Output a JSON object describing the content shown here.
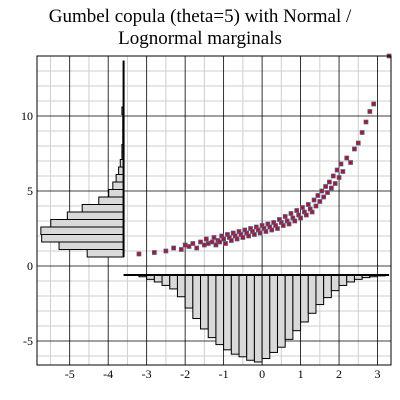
{
  "chart_data": {
    "type": "scatter",
    "title_lines": [
      "Gumbel copula (theta=5) with Normal /",
      "Lognormal marginals"
    ],
    "xlabel": "",
    "ylabel": "",
    "xlim": [
      -5.85,
      3.35
    ],
    "ylim": [
      -6.6,
      14.0
    ],
    "grid": true,
    "x_ticks": [
      -5,
      -4,
      -3,
      -2,
      -1,
      0,
      1,
      2,
      3
    ],
    "y_ticks": [
      -5,
      0,
      5,
      10
    ],
    "colors": {
      "point_fill": "#b01a1a",
      "point_edge": "#4a5fa8",
      "hist_fill": "#d9d9d9",
      "hist_edge": "#000000",
      "grid_major": "#000000",
      "grid_minor": "#cfcfcf"
    },
    "x_marginal_histogram": {
      "bin_edges": [
        -3.2,
        -3.0,
        -2.8,
        -2.6,
        -2.4,
        -2.2,
        -2.0,
        -1.8,
        -1.6,
        -1.4,
        -1.2,
        -1.0,
        -0.8,
        -0.6,
        -0.4,
        -0.2,
        0.0,
        0.2,
        0.4,
        0.6,
        0.8,
        1.0,
        1.2,
        1.4,
        1.6,
        1.8,
        2.0,
        2.2,
        2.4,
        2.6,
        2.8,
        3.0,
        3.2
      ],
      "relative_heights": [
        0.02,
        0.05,
        0.08,
        0.12,
        0.16,
        0.25,
        0.38,
        0.5,
        0.62,
        0.72,
        0.8,
        0.86,
        0.91,
        0.94,
        0.98,
        1.0,
        0.96,
        0.89,
        0.83,
        0.74,
        0.64,
        0.54,
        0.44,
        0.34,
        0.26,
        0.18,
        0.12,
        0.08,
        0.05,
        0.03,
        0.02,
        0.01
      ]
    },
    "y_marginal_histogram": {
      "bin_edges": [
        0.6,
        1.1,
        1.6,
        2.1,
        2.6,
        3.1,
        3.6,
        4.1,
        4.6,
        5.1,
        5.6,
        6.1,
        6.6,
        7.1,
        7.6,
        8.1,
        8.6,
        9.1,
        9.6,
        10.1,
        10.6
      ],
      "relative_heights": [
        0.44,
        0.78,
        0.99,
        1.0,
        0.88,
        0.68,
        0.5,
        0.3,
        0.18,
        0.13,
        0.09,
        0.06,
        0.04,
        0.02,
        0.02,
        0.01,
        0.01,
        0.01,
        0.01,
        0.02
      ]
    },
    "scatter_points": [
      [
        -3.2,
        0.8
      ],
      [
        -2.8,
        0.9
      ],
      [
        -2.5,
        1.0
      ],
      [
        -2.3,
        1.2
      ],
      [
        -2.1,
        1.1
      ],
      [
        -2.0,
        1.4
      ],
      [
        -1.9,
        1.3
      ],
      [
        -1.8,
        1.5
      ],
      [
        -1.7,
        1.2
      ],
      [
        -1.6,
        1.6
      ],
      [
        -1.5,
        1.4
      ],
      [
        -1.45,
        1.8
      ],
      [
        -1.4,
        1.5
      ],
      [
        -1.3,
        1.6
      ],
      [
        -1.25,
        1.9
      ],
      [
        -1.2,
        1.4
      ],
      [
        -1.15,
        1.7
      ],
      [
        -1.1,
        1.6
      ],
      [
        -1.05,
        2.0
      ],
      [
        -1.0,
        1.8
      ],
      [
        -0.95,
        1.5
      ],
      [
        -0.9,
        2.1
      ],
      [
        -0.85,
        1.9
      ],
      [
        -0.8,
        1.7
      ],
      [
        -0.75,
        2.2
      ],
      [
        -0.7,
        2.0
      ],
      [
        -0.65,
        1.8
      ],
      [
        -0.6,
        2.3
      ],
      [
        -0.55,
        2.1
      ],
      [
        -0.5,
        1.9
      ],
      [
        -0.45,
        2.4
      ],
      [
        -0.4,
        2.2
      ],
      [
        -0.35,
        2.0
      ],
      [
        -0.3,
        2.5
      ],
      [
        -0.25,
        2.3
      ],
      [
        -0.2,
        2.1
      ],
      [
        -0.15,
        2.6
      ],
      [
        -0.1,
        2.4
      ],
      [
        -0.05,
        2.2
      ],
      [
        0.0,
        2.7
      ],
      [
        0.05,
        2.5
      ],
      [
        0.1,
        2.3
      ],
      [
        0.15,
        2.8
      ],
      [
        0.2,
        2.6
      ],
      [
        0.25,
        2.4
      ],
      [
        0.3,
        2.9
      ],
      [
        0.35,
        2.7
      ],
      [
        0.4,
        2.5
      ],
      [
        0.45,
        3.1
      ],
      [
        0.5,
        2.9
      ],
      [
        0.55,
        2.7
      ],
      [
        0.6,
        3.3
      ],
      [
        0.65,
        3.0
      ],
      [
        0.7,
        2.8
      ],
      [
        0.75,
        3.5
      ],
      [
        0.8,
        3.2
      ],
      [
        0.85,
        3.0
      ],
      [
        0.9,
        3.7
      ],
      [
        0.95,
        3.4
      ],
      [
        1.0,
        3.2
      ],
      [
        1.05,
        3.9
      ],
      [
        1.1,
        3.6
      ],
      [
        1.15,
        3.4
      ],
      [
        1.2,
        4.1
      ],
      [
        1.25,
        3.8
      ],
      [
        1.3,
        3.6
      ],
      [
        1.35,
        4.4
      ],
      [
        1.4,
        4.0
      ],
      [
        1.45,
        4.7
      ],
      [
        1.5,
        4.3
      ],
      [
        1.55,
        5.0
      ],
      [
        1.6,
        4.6
      ],
      [
        1.65,
        5.3
      ],
      [
        1.7,
        4.9
      ],
      [
        1.75,
        5.6
      ],
      [
        1.8,
        5.2
      ],
      [
        1.85,
        6.0
      ],
      [
        1.9,
        5.5
      ],
      [
        1.95,
        6.4
      ],
      [
        2.0,
        5.9
      ],
      [
        2.05,
        6.8
      ],
      [
        2.1,
        6.3
      ],
      [
        2.2,
        7.2
      ],
      [
        2.3,
        6.9
      ],
      [
        2.4,
        7.8
      ],
      [
        2.5,
        8.2
      ],
      [
        2.6,
        8.9
      ],
      [
        2.7,
        9.6
      ],
      [
        2.8,
        10.3
      ],
      [
        2.9,
        10.8
      ],
      [
        3.3,
        14.0
      ]
    ]
  }
}
